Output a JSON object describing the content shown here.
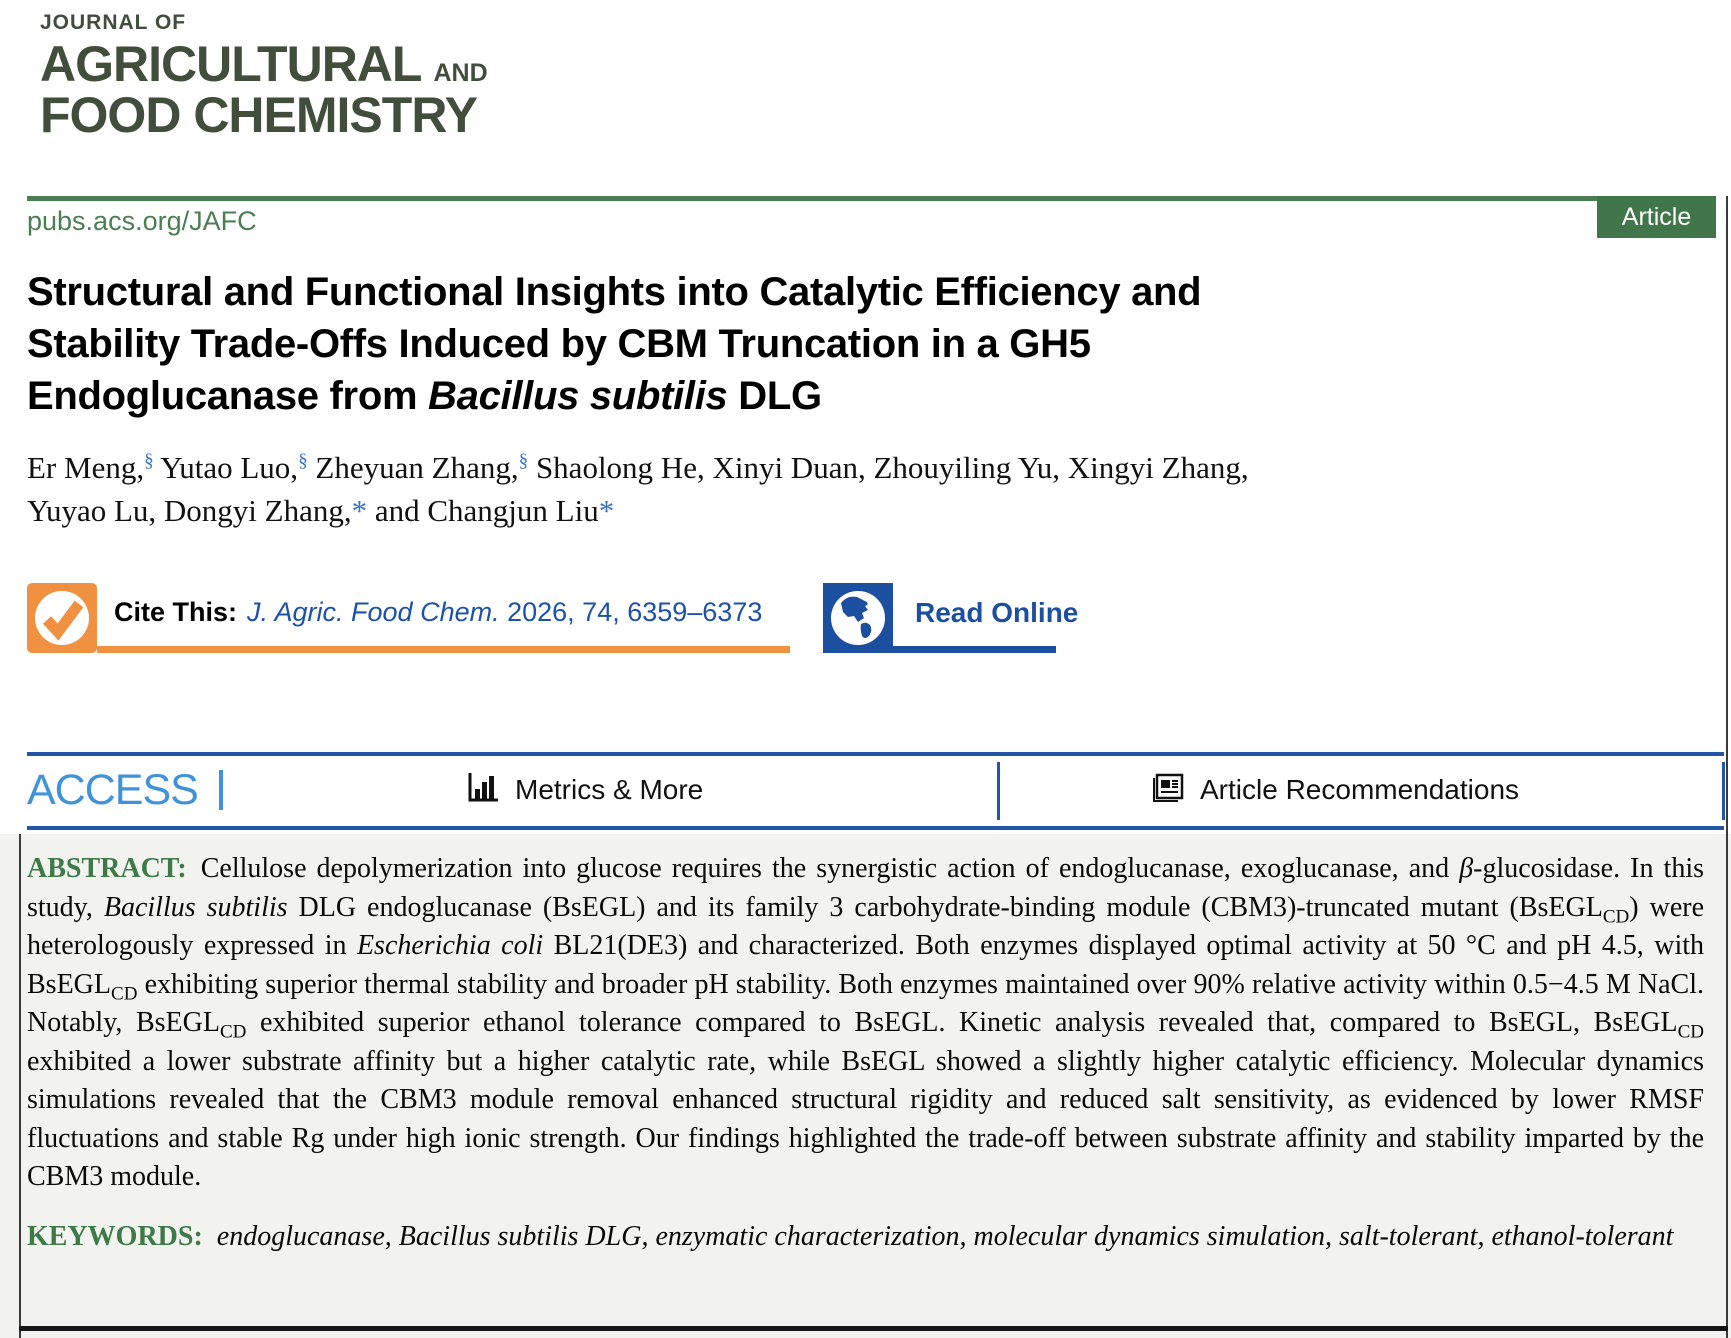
{
  "journal": {
    "name_top": "JOURNAL OF",
    "name_line1_main": "AGRICULTURAL",
    "name_line1_suffix": "AND",
    "name_line2": "FOOD CHEMISTRY",
    "url": "pubs.acs.org/JAFC",
    "article_badge": "Article"
  },
  "colors": {
    "logo_green": "#414e3c",
    "link_green": "#4c7e53",
    "badge_green": "#41764a",
    "label_green": "#3d7a48",
    "cite_orange": "#ef9140",
    "read_online_blue": "#1d4fa0",
    "citation_blue": "#1d52a8",
    "access_light_blue": "#4193d9",
    "access_bar_blue": "#2256a5",
    "author_marker_blue": "#3b72c8",
    "abstract_background": "#f2f2ef"
  },
  "title": {
    "lines": [
      [
        {
          "t": "Structural and Functional Insights into Catalytic Efficiency and"
        }
      ],
      [
        {
          "t": "Stability Trade-Offs Induced by CBM Truncation in a GH5"
        }
      ],
      [
        {
          "t": "Endoglucanase from "
        },
        {
          "t": "Bacillus subtilis",
          "i": true
        },
        {
          "t": " DLG"
        }
      ]
    ]
  },
  "authors": {
    "lines": [
      [
        {
          "t": "Er Meng,"
        },
        {
          "t": "§",
          "sup": true,
          "c": "mk"
        },
        {
          "t": " Yutao Luo,"
        },
        {
          "t": "§",
          "sup": true,
          "c": "mk"
        },
        {
          "t": " Zheyuan Zhang,"
        },
        {
          "t": "§",
          "sup": true,
          "c": "mk"
        },
        {
          "t": " Shaolong He, Xinyi Duan, Zhouyiling Yu, Xingyi Zhang,"
        }
      ],
      [
        {
          "t": "Yuyao Lu, Dongyi Zhang,"
        },
        {
          "t": "*",
          "c": "mk"
        },
        {
          "t": " and Changjun Liu"
        },
        {
          "t": "*",
          "c": "mk"
        }
      ]
    ]
  },
  "cite": {
    "label": "Cite This:",
    "citation": [
      {
        "t": "J. Agric. Food Chem.",
        "i": true
      },
      {
        "t": " 2026, 74, 6359–6373"
      }
    ]
  },
  "read_online": {
    "label": "Read Online"
  },
  "access_bar": {
    "access": "ACCESS",
    "metrics": "Metrics & More",
    "recommendations": "Article Recommendations",
    "icons": [
      "bar-chart-icon",
      "article-recommendations-icon"
    ]
  },
  "abstract": {
    "label": "ABSTRACT:",
    "body": [
      {
        "t": "Cellulose depolymerization into glucose requires the synergistic action of endoglucanase, exoglucanase, and "
      },
      {
        "t": "β",
        "i": true
      },
      {
        "t": "-glucosidase. In this study, "
      },
      {
        "t": "Bacillus subtilis",
        "i": true
      },
      {
        "t": " DLG endoglucanase (BsEGL) and its family 3 carbohydrate-binding module (CBM3)-truncated mutant (BsEGL"
      },
      {
        "t": "CD",
        "sub": true
      },
      {
        "t": ") were heterologously expressed in "
      },
      {
        "t": "Escherichia coli",
        "i": true
      },
      {
        "t": " BL21(DE3) and characterized. Both enzymes displayed optimal activity at 50 °C and pH 4.5, with BsEGL"
      },
      {
        "t": "CD",
        "sub": true
      },
      {
        "t": " exhibiting superior thermal stability and broader pH stability. Both enzymes maintained over 90% relative activity within 0.5−4.5 M NaCl. Notably, BsEGL"
      },
      {
        "t": "CD",
        "sub": true
      },
      {
        "t": " exhibited superior ethanol tolerance compared to BsEGL. Kinetic analysis revealed that, compared to BsEGL, BsEGL"
      },
      {
        "t": "CD",
        "sub": true
      },
      {
        "t": " exhibited a lower substrate affinity but a higher catalytic rate, while BsEGL showed a slightly higher catalytic efficiency. Molecular dynamics simulations revealed that the CBM3 module removal enhanced structural rigidity and reduced salt sensitivity, as evidenced by lower RMSF fluctuations and stable Rg under high ionic strength. Our findings highlighted the trade-off between substrate affinity and stability imparted by the CBM3 module."
      }
    ]
  },
  "keywords": {
    "label": "KEYWORDS:",
    "text": "endoglucanase, Bacillus subtilis DLG, enzymatic characterization, molecular dynamics simulation, salt-tolerant, ethanol-tolerant"
  }
}
